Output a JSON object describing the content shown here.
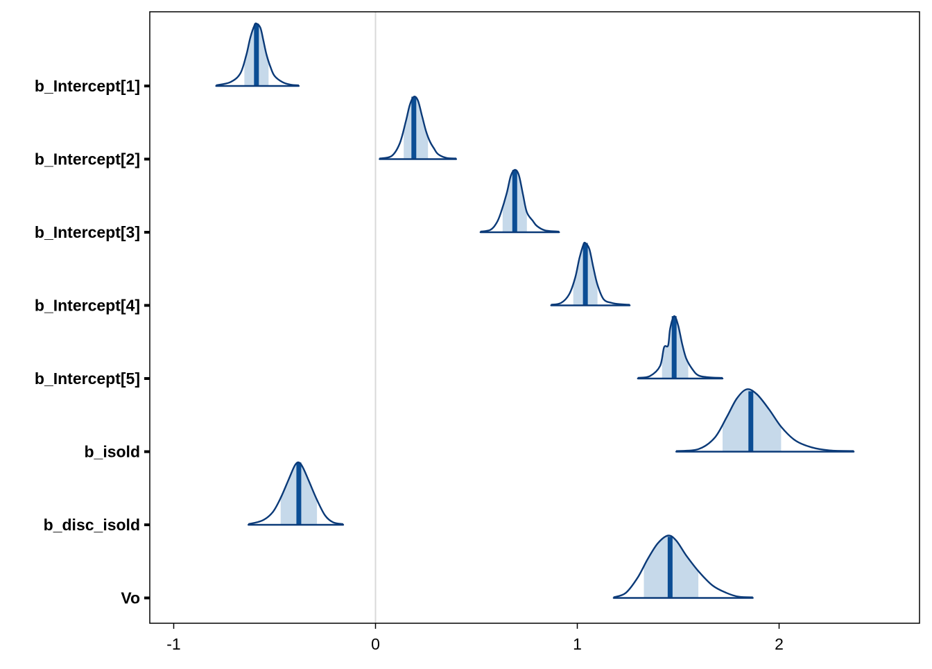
{
  "chart_data": {
    "type": "area",
    "title": "",
    "xlabel": "",
    "ylabel": "",
    "xlim": [
      -1.1,
      2.65
    ],
    "x_ticks": [
      -1,
      0,
      1,
      2
    ],
    "x_tick_labels": [
      "-1",
      "0",
      "1",
      "2"
    ],
    "vline_at": 0,
    "grid": false,
    "colors": {
      "outline": "#0b3a78",
      "inner_fill": "#c6d9ea",
      "median_line": "#0b4d94",
      "zero_line": "#d9d9d9",
      "panel_border": "#000000"
    },
    "parameters": [
      {
        "label": "b_Intercept[1]",
        "median": -0.59,
        "inner": [
          -0.65,
          -0.53
        ],
        "outer": [
          -0.79,
          -0.38
        ],
        "density": [
          [
            -0.79,
            0.01
          ],
          [
            -0.72,
            0.06
          ],
          [
            -0.67,
            0.2
          ],
          [
            -0.64,
            0.5
          ],
          [
            -0.62,
            0.78
          ],
          [
            -0.6,
            0.97
          ],
          [
            -0.59,
            1.0
          ],
          [
            -0.57,
            0.93
          ],
          [
            -0.555,
            0.72
          ],
          [
            -0.54,
            0.5
          ],
          [
            -0.52,
            0.3
          ],
          [
            -0.5,
            0.16
          ],
          [
            -0.46,
            0.06
          ],
          [
            -0.42,
            0.02
          ],
          [
            -0.38,
            0.01
          ]
        ]
      },
      {
        "label": "b_Intercept[2]",
        "median": 0.19,
        "inner": [
          0.14,
          0.26
        ],
        "outer": [
          0.02,
          0.4
        ],
        "density": [
          [
            0.02,
            0.01
          ],
          [
            0.08,
            0.05
          ],
          [
            0.12,
            0.25
          ],
          [
            0.15,
            0.6
          ],
          [
            0.17,
            0.87
          ],
          [
            0.19,
            1.0
          ],
          [
            0.21,
            0.94
          ],
          [
            0.23,
            0.7
          ],
          [
            0.25,
            0.45
          ],
          [
            0.27,
            0.28
          ],
          [
            0.29,
            0.17
          ],
          [
            0.31,
            0.08
          ],
          [
            0.35,
            0.02
          ],
          [
            0.4,
            0.01
          ]
        ]
      },
      {
        "label": "b_Intercept[3]",
        "median": 0.69,
        "inner": [
          0.63,
          0.75
        ],
        "outer": [
          0.52,
          0.91
        ],
        "density": [
          [
            0.52,
            0.01
          ],
          [
            0.57,
            0.04
          ],
          [
            0.6,
            0.15
          ],
          [
            0.62,
            0.3
          ],
          [
            0.65,
            0.62
          ],
          [
            0.67,
            0.9
          ],
          [
            0.69,
            1.0
          ],
          [
            0.71,
            0.92
          ],
          [
            0.73,
            0.62
          ],
          [
            0.75,
            0.32
          ],
          [
            0.78,
            0.18
          ],
          [
            0.8,
            0.1
          ],
          [
            0.84,
            0.03
          ],
          [
            0.91,
            0.01
          ]
        ]
      },
      {
        "label": "b_Intercept[4]",
        "median": 1.04,
        "inner": [
          0.98,
          1.1
        ],
        "outer": [
          0.87,
          1.26
        ],
        "density": [
          [
            0.87,
            0.01
          ],
          [
            0.92,
            0.04
          ],
          [
            0.96,
            0.18
          ],
          [
            0.99,
            0.45
          ],
          [
            1.01,
            0.75
          ],
          [
            1.03,
            0.97
          ],
          [
            1.04,
            1.0
          ],
          [
            1.06,
            0.9
          ],
          [
            1.08,
            0.6
          ],
          [
            1.1,
            0.33
          ],
          [
            1.13,
            0.1
          ],
          [
            1.17,
            0.04
          ],
          [
            1.21,
            0.02
          ],
          [
            1.26,
            0.01
          ]
        ]
      },
      {
        "label": "b_Intercept[5]",
        "median": 1.48,
        "inner": [
          1.42,
          1.55
        ],
        "outer": [
          1.3,
          1.72
        ],
        "density": [
          [
            1.3,
            0.01
          ],
          [
            1.36,
            0.04
          ],
          [
            1.41,
            0.2
          ],
          [
            1.43,
            0.5
          ],
          [
            1.45,
            0.53
          ],
          [
            1.46,
            0.8
          ],
          [
            1.48,
            1.0
          ],
          [
            1.5,
            0.85
          ],
          [
            1.52,
            0.55
          ],
          [
            1.54,
            0.32
          ],
          [
            1.57,
            0.15
          ],
          [
            1.6,
            0.05
          ],
          [
            1.65,
            0.02
          ],
          [
            1.72,
            0.01
          ]
        ]
      },
      {
        "label": "b_isold",
        "median": 1.86,
        "inner": [
          1.72,
          2.01
        ],
        "outer": [
          1.49,
          2.37
        ],
        "density": [
          [
            1.49,
            0.01
          ],
          [
            1.6,
            0.04
          ],
          [
            1.68,
            0.22
          ],
          [
            1.74,
            0.55
          ],
          [
            1.79,
            0.85
          ],
          [
            1.84,
            1.0
          ],
          [
            1.89,
            0.92
          ],
          [
            1.95,
            0.68
          ],
          [
            2.01,
            0.4
          ],
          [
            2.08,
            0.18
          ],
          [
            2.16,
            0.07
          ],
          [
            2.25,
            0.02
          ],
          [
            2.37,
            0.01
          ]
        ]
      },
      {
        "label": "b_disc_isold",
        "median": -0.38,
        "inner": [
          -0.47,
          -0.29
        ],
        "outer": [
          -0.63,
          -0.16
        ],
        "density": [
          [
            -0.63,
            0.01
          ],
          [
            -0.56,
            0.07
          ],
          [
            -0.51,
            0.2
          ],
          [
            -0.47,
            0.43
          ],
          [
            -0.43,
            0.73
          ],
          [
            -0.4,
            0.95
          ],
          [
            -0.38,
            1.0
          ],
          [
            -0.36,
            0.92
          ],
          [
            -0.33,
            0.7
          ],
          [
            -0.29,
            0.4
          ],
          [
            -0.25,
            0.15
          ],
          [
            -0.21,
            0.04
          ],
          [
            -0.16,
            0.01
          ]
        ]
      },
      {
        "label": "Vo",
        "median": 1.46,
        "inner": [
          1.33,
          1.6
        ],
        "outer": [
          1.18,
          1.87
        ],
        "density": [
          [
            1.18,
            0.01
          ],
          [
            1.24,
            0.08
          ],
          [
            1.3,
            0.33
          ],
          [
            1.35,
            0.63
          ],
          [
            1.4,
            0.88
          ],
          [
            1.45,
            1.0
          ],
          [
            1.49,
            0.92
          ],
          [
            1.54,
            0.68
          ],
          [
            1.6,
            0.43
          ],
          [
            1.67,
            0.2
          ],
          [
            1.74,
            0.08
          ],
          [
            1.8,
            0.02
          ],
          [
            1.87,
            0.01
          ]
        ]
      }
    ]
  }
}
